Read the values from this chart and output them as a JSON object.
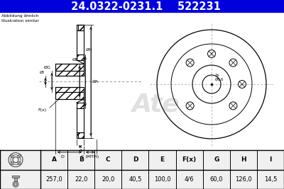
{
  "title1": "24.0322-0231.1",
  "title2": "522231",
  "header_bg": "#0000DD",
  "header_text_color": "#FFFFFF",
  "bg_color": "#F0F0F0",
  "drawing_bg": "#FFFFFF",
  "table_headers": [
    "A",
    "B",
    "C",
    "D",
    "E",
    "F(x)",
    "G",
    "H",
    "I"
  ],
  "table_values": [
    "257,0",
    "22,0",
    "20,0",
    "40,5",
    "100,0",
    "4/6",
    "60,0",
    "126,0",
    "14,5"
  ],
  "abbildung_line1": "Abbildung ähnlich",
  "abbildung_line2": "Illustration similar",
  "annot_phi": "Ø6,6",
  "annot_2x": "2x",
  "label_phiI": "ØI",
  "label_phiG": "ØG",
  "label_Fx": "F(x)",
  "label_phiE": "ØE",
  "label_phiH": "ØH",
  "label_phiA": "ØA",
  "label_B": "B",
  "label_C": "C (MTH)",
  "label_D": "D",
  "line_color": "#000000",
  "dim_line_color": "#000000",
  "center_line_color": "#888888",
  "hatch_color": "#000000",
  "watermark_color": "#DDDDDD"
}
